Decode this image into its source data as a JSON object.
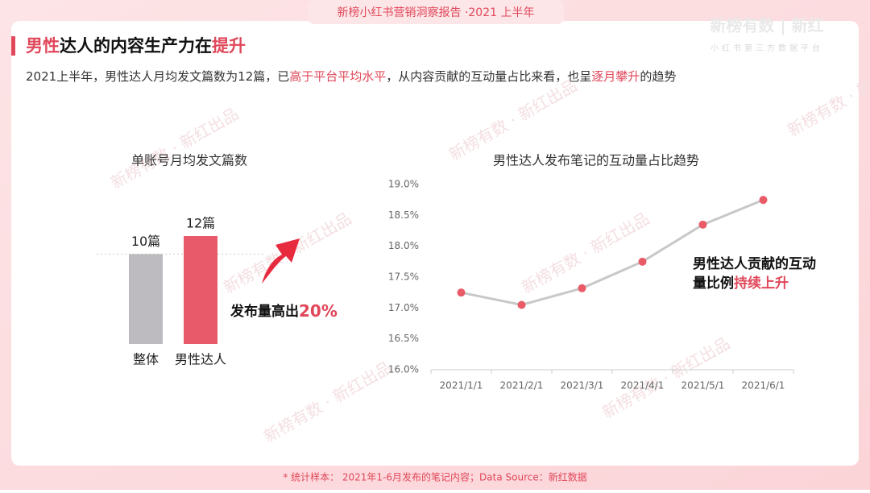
{
  "header": {
    "tag": "新榜小红书营销洞察报告 ·2021 上半年",
    "logo": "新榜有数 | 新红",
    "logo_sub": "小红书第三方数据平台",
    "watermark": "新榜有数 · 新红出品"
  },
  "title": [
    "男性",
    "达人的内容生产力在",
    "提升"
  ],
  "subtitle": [
    "2021上半年，男性达人月均发文篇数为12篇，已",
    "高于平台平均水平",
    "，从内容贡献的互动量占比来看，也呈",
    "逐月攀升",
    "的趋势"
  ],
  "chart_data": [
    {
      "type": "bar",
      "title": "单账号月均发文篇数",
      "categories": [
        "整体",
        "男性达人"
      ],
      "values": [
        10,
        12
      ],
      "value_labels": [
        "10篇",
        "12篇"
      ],
      "colors": [
        "#bdbbbf",
        "#e85a6a"
      ],
      "annotation": [
        "发布量高出",
        "20%"
      ]
    },
    {
      "type": "line",
      "title": "男性达人发布笔记的互动量占比趋势",
      "x": [
        "2021/1/1",
        "2021/2/1",
        "2021/3/1",
        "2021/4/1",
        "2021/5/1",
        "2021/6/1"
      ],
      "values": [
        17.25,
        17.05,
        17.32,
        17.75,
        18.35,
        18.75
      ],
      "color": "#c8c8c8",
      "marker_color": "#ea5b68",
      "ylim": [
        16,
        19
      ],
      "yticks": [
        {
          "value": 16,
          "label": "16.0%"
        },
        {
          "value": 16.5,
          "label": "16.5%"
        },
        {
          "value": 17,
          "label": "17.0%"
        },
        {
          "value": 17.5,
          "label": "17.5%"
        },
        {
          "value": 18,
          "label": "18.0%"
        },
        {
          "value": 18.5,
          "label": "18.5%"
        },
        {
          "value": 19,
          "label": "19.0%"
        }
      ],
      "annotation": [
        "男性达人贡献的互动",
        "量比例",
        "持续上升"
      ]
    }
  ],
  "footer": "* 统计样本： 2021年1-6月发布的笔记内容；Data Source：新红数据"
}
